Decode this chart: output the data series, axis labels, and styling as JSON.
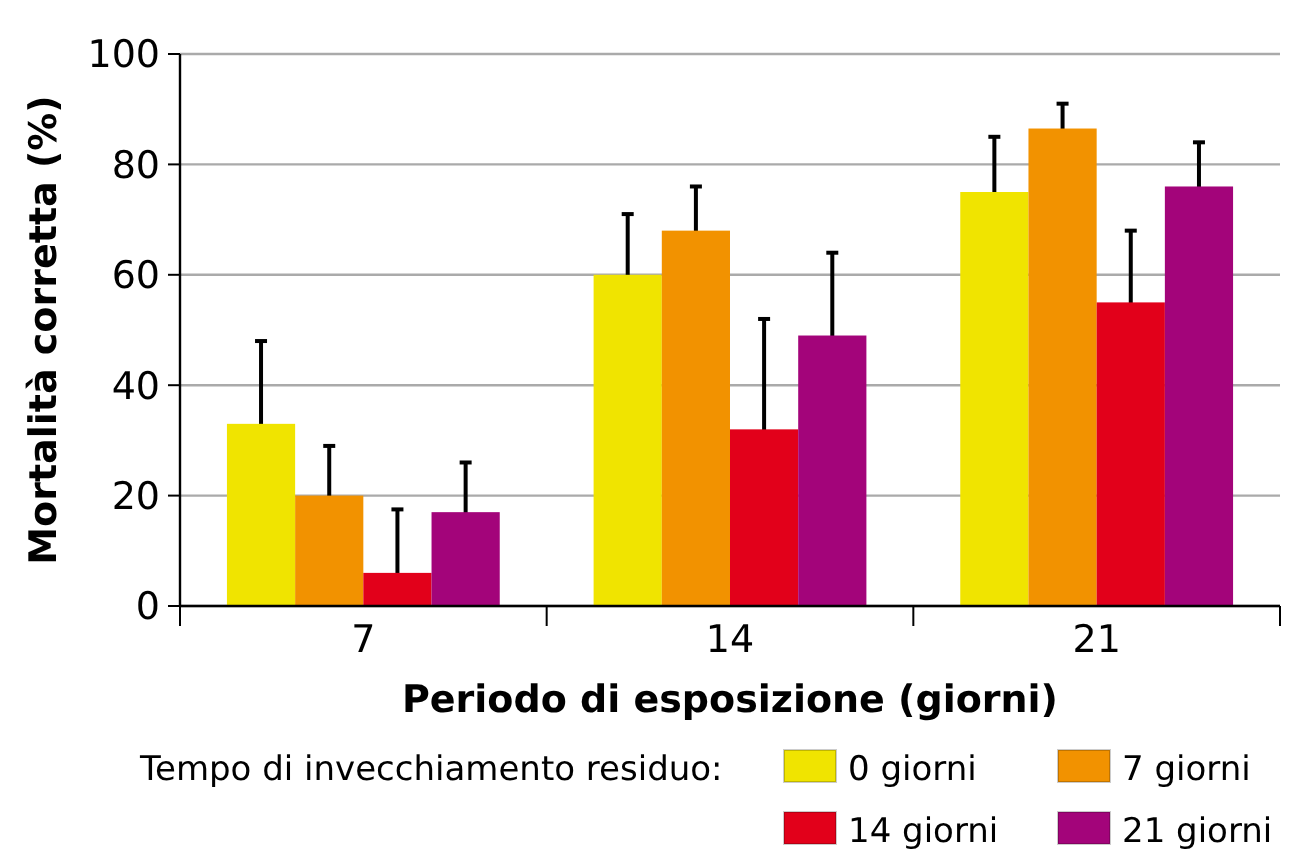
{
  "chart_data": {
    "type": "bar",
    "xlabel": "Periodo di esposizione (giorni)",
    "ylabel": "Mortalità corretta (%)",
    "legend_title": "Tempo di invecchiamento residuo:",
    "categories": [
      "7",
      "14",
      "21"
    ],
    "series": [
      {
        "name": "0 giorni",
        "color": "#f0e400",
        "values": [
          33,
          60,
          75
        ],
        "errors": [
          15,
          11,
          10
        ]
      },
      {
        "name": "7 giorni",
        "color": "#f29200",
        "values": [
          20,
          68,
          86.5
        ],
        "errors": [
          9,
          8,
          4.5
        ]
      },
      {
        "name": "14 giorni",
        "color": "#e2001a",
        "values": [
          6,
          32,
          55
        ],
        "errors": [
          11.5,
          20,
          13
        ]
      },
      {
        "name": "21 giorni",
        "color": "#a3047a",
        "values": [
          17,
          49,
          76
        ],
        "errors": [
          9,
          15,
          8
        ]
      }
    ],
    "ylim": [
      0,
      100
    ],
    "yticks": [
      0,
      20,
      40,
      60,
      80,
      100
    ],
    "grid": "y",
    "legend": "bottom"
  }
}
